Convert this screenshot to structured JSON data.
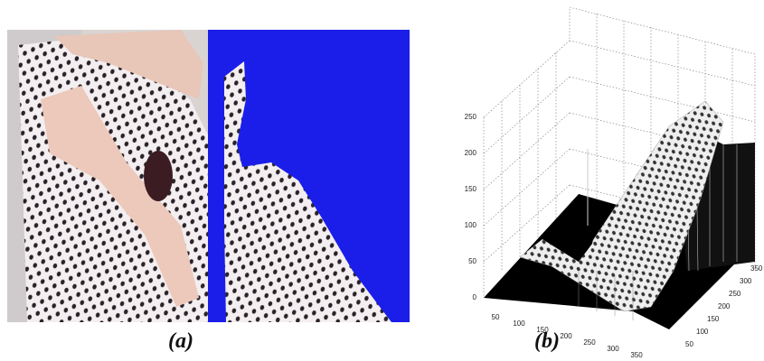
{
  "panels": [
    {
      "caption": "(a)"
    },
    {
      "caption": "(b)",
      "z_ticks": [
        0,
        50,
        100,
        150,
        200,
        250
      ],
      "x_ticks": [
        50,
        100,
        150,
        200,
        250,
        300,
        350
      ],
      "y_ticks": [
        50,
        100,
        150,
        200,
        250,
        300,
        350
      ]
    }
  ]
}
